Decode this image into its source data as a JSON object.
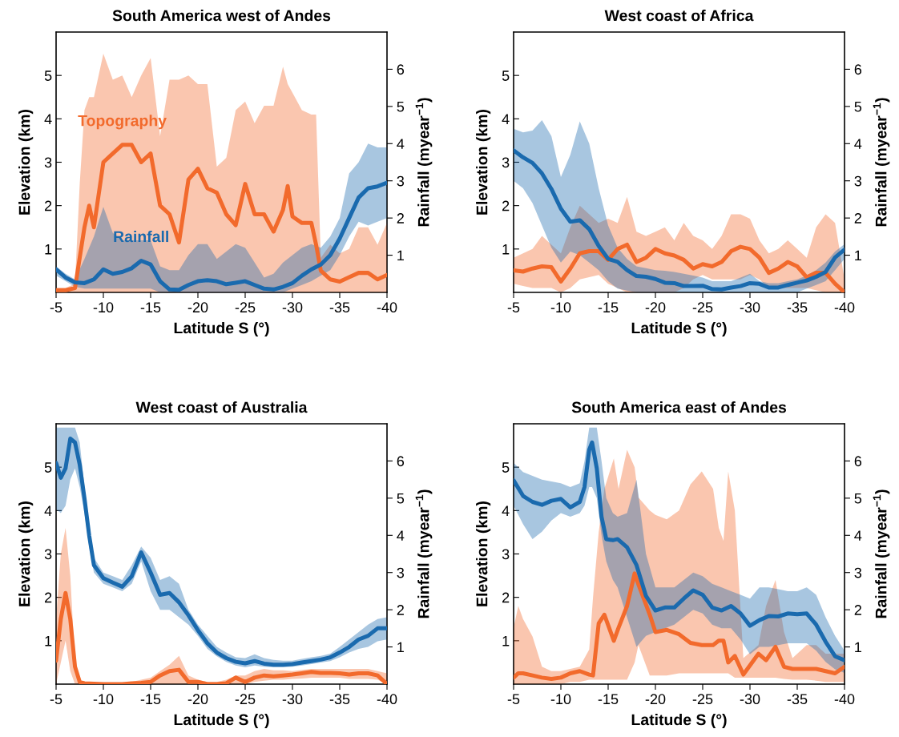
{
  "chart_data": [
    {
      "type": "line",
      "title": "South America west of Andes",
      "xlabel": "Latitude S (°)",
      "ylabel": "Elevation (km)",
      "y2label": "Rainfall (myear$^{−1}$)",
      "xlim": [
        -5,
        -40
      ],
      "xticks": [
        -5,
        -10,
        -15,
        -20,
        -25,
        -30,
        -35,
        -40
      ],
      "ylim": [
        0,
        6
      ],
      "yticks": [
        1,
        2,
        3,
        4,
        5
      ],
      "y2lim": [
        0,
        7
      ],
      "y2ticks": [
        1,
        2,
        3,
        4,
        5,
        6
      ],
      "series": [
        {
          "name": "Topography",
          "color": "#f26a2c",
          "axis": "y",
          "x": [
            -5,
            -6,
            -7,
            -7.5,
            -8,
            -8.5,
            -9,
            -10,
            -11,
            -12,
            -13,
            -14,
            -15,
            -16,
            -17,
            -18,
            -19,
            -20,
            -21,
            -22,
            -23,
            -24,
            -25,
            -26,
            -27,
            -28,
            -29,
            -29.5,
            -30,
            -31,
            -32,
            -32.5,
            -33,
            -34,
            -35,
            -36,
            -37,
            -38,
            -39,
            -40
          ],
          "values": [
            0.05,
            0.05,
            0.1,
            0.8,
            1.5,
            2.0,
            1.5,
            3.0,
            3.2,
            3.4,
            3.4,
            3.0,
            3.2,
            2.0,
            1.8,
            1.15,
            2.6,
            2.85,
            2.4,
            2.3,
            1.8,
            1.55,
            2.5,
            1.8,
            1.8,
            1.4,
            1.9,
            2.45,
            1.75,
            1.6,
            1.6,
            1.1,
            0.5,
            0.3,
            0.25,
            0.35,
            0.45,
            0.45,
            0.3,
            0.4
          ],
          "upper": [
            0.1,
            0.1,
            0.2,
            2.5,
            4.2,
            4.5,
            4.5,
            5.5,
            4.9,
            5.0,
            4.5,
            5.0,
            5.4,
            3.6,
            4.9,
            4.9,
            5.0,
            4.8,
            4.8,
            2.9,
            3.1,
            4.2,
            4.4,
            3.9,
            4.3,
            4.3,
            5.2,
            4.8,
            4.6,
            4.2,
            4.1,
            4.1,
            0.8,
            1.1,
            0.9,
            1.0,
            1.5,
            1.5,
            1.1,
            1.6
          ],
          "lower": [
            0,
            0,
            0,
            0,
            0,
            0,
            0,
            0,
            0,
            0,
            0,
            0,
            0,
            0,
            0,
            0,
            0,
            0,
            0,
            0,
            0,
            0,
            0,
            0,
            0,
            0,
            0,
            0,
            0,
            0,
            0,
            0,
            0,
            0,
            0,
            0,
            0,
            0,
            0,
            0
          ]
        },
        {
          "name": "Rainfall",
          "color": "#1a6aae",
          "axis": "y2",
          "x": [
            -5,
            -6,
            -7,
            -8,
            -9,
            -10,
            -11,
            -12,
            -13,
            -14,
            -15,
            -16,
            -17,
            -18,
            -19,
            -20,
            -21,
            -22,
            -23,
            -24,
            -25,
            -26,
            -27,
            -28,
            -29,
            -30,
            -31,
            -32,
            -33,
            -34,
            -35,
            -36,
            -37,
            -38,
            -39,
            -40
          ],
          "values": [
            0.62,
            0.4,
            0.27,
            0.25,
            0.35,
            0.62,
            0.5,
            0.55,
            0.65,
            0.85,
            0.75,
            0.3,
            0.08,
            0.07,
            0.2,
            0.3,
            0.33,
            0.3,
            0.22,
            0.26,
            0.3,
            0.2,
            0.1,
            0.08,
            0.15,
            0.25,
            0.45,
            0.62,
            0.75,
            1.0,
            1.45,
            2.0,
            2.55,
            2.8,
            2.85,
            2.95
          ],
          "upper": [
            0.7,
            0.5,
            0.35,
            0.9,
            1.5,
            2.3,
            1.6,
            1.4,
            1.4,
            1.4,
            1.4,
            0.7,
            0.6,
            0.6,
            1.0,
            1.3,
            1.3,
            0.9,
            1.1,
            1.3,
            1.2,
            0.8,
            0.4,
            0.5,
            0.8,
            1.0,
            1.2,
            1.3,
            1.2,
            1.5,
            2.0,
            3.2,
            3.5,
            4.0,
            3.9,
            3.9
          ],
          "lower": [
            0.45,
            0.3,
            0.15,
            0.1,
            0.1,
            0.1,
            0.1,
            0.1,
            0.1,
            0.1,
            0.1,
            0,
            0,
            0,
            0,
            0,
            0,
            0,
            0,
            0,
            0,
            0,
            0,
            0,
            0,
            0.1,
            0.2,
            0.3,
            0.45,
            0.6,
            1.0,
            1.5,
            1.9,
            1.8,
            1.9,
            2.0
          ]
        }
      ]
    },
    {
      "type": "line",
      "title": "West coast of Africa",
      "xlabel": "Latitude S (°)",
      "ylabel": "Elevation (km)",
      "y2label": "Rainfall (myear$^{−1}$)",
      "xlim": [
        -5,
        -40
      ],
      "xticks": [
        -5,
        -10,
        -15,
        -20,
        -25,
        -30,
        -35,
        -40
      ],
      "ylim": [
        0,
        6
      ],
      "yticks": [
        1,
        2,
        3,
        4,
        5
      ],
      "y2lim": [
        0,
        7
      ],
      "y2ticks": [
        1,
        2,
        3,
        4,
        5,
        6
      ],
      "series": [
        {
          "color": "#f26a2c",
          "axis": "y",
          "x": [
            -5,
            -6,
            -7,
            -8,
            -9,
            -10,
            -11,
            -12,
            -13,
            -14,
            -15,
            -16,
            -17,
            -18,
            -19,
            -20,
            -21,
            -22,
            -23,
            -24,
            -25,
            -26,
            -27,
            -28,
            -29,
            -30,
            -31,
            -32,
            -33,
            -34,
            -35,
            -36,
            -37,
            -38,
            -39,
            -40
          ],
          "values": [
            0.51,
            0.48,
            0.55,
            0.6,
            0.58,
            0.25,
            0.55,
            0.9,
            0.95,
            0.95,
            0.75,
            1.0,
            1.1,
            0.7,
            0.8,
            1.0,
            0.9,
            0.85,
            0.75,
            0.55,
            0.65,
            0.6,
            0.7,
            0.95,
            1.05,
            1.0,
            0.8,
            0.45,
            0.55,
            0.7,
            0.6,
            0.35,
            0.45,
            0.45,
            0.2,
            0.0
          ],
          "upper": [
            0.8,
            0.9,
            1.0,
            1.3,
            1.1,
            0.9,
            1.5,
            2.0,
            1.8,
            1.6,
            1.7,
            1.6,
            2.2,
            1.4,
            1.3,
            1.4,
            1.5,
            1.2,
            1.6,
            1.3,
            1.2,
            1.0,
            1.3,
            1.8,
            1.8,
            1.7,
            1.2,
            0.9,
            1.0,
            1.2,
            1.0,
            0.8,
            1.5,
            1.8,
            1.6,
            0.3
          ],
          "lower": [
            0.2,
            0.15,
            0.1,
            0.1,
            0.1,
            0.0,
            0.1,
            0.3,
            0.35,
            0.4,
            0.2,
            0.1,
            0,
            0,
            0,
            0,
            0,
            0,
            0.1,
            0.3,
            0.4,
            0.3,
            0.3,
            0.3,
            0.3,
            0.4,
            0.3,
            0.1,
            0.1,
            0.1,
            0.1,
            0.1,
            0.05,
            0,
            0,
            0
          ]
        },
        {
          "color": "#1a6aae",
          "axis": "y2",
          "x": [
            -5,
            -6,
            -7,
            -8,
            -9,
            -10,
            -11,
            -12,
            -13,
            -14,
            -15,
            -16,
            -17,
            -18,
            -19,
            -20,
            -21,
            -22,
            -23,
            -24,
            -25,
            -26,
            -27,
            -28,
            -29,
            -30,
            -31,
            -32,
            -33,
            -34,
            -35,
            -36,
            -37,
            -38,
            -39,
            -40
          ],
          "values": [
            3.82,
            3.63,
            3.48,
            3.2,
            2.78,
            2.25,
            1.9,
            1.94,
            1.7,
            1.25,
            0.9,
            0.82,
            0.6,
            0.44,
            0.42,
            0.36,
            0.26,
            0.25,
            0.17,
            0.17,
            0.18,
            0.09,
            0.08,
            0.13,
            0.17,
            0.25,
            0.23,
            0.13,
            0.13,
            0.2,
            0.26,
            0.32,
            0.42,
            0.55,
            0.94,
            1.15
          ],
          "upper": [
            4.4,
            4.3,
            4.35,
            4.63,
            4.2,
            3.1,
            3.7,
            4.6,
            4.0,
            2.8,
            1.8,
            1.2,
            0.9,
            0.7,
            0.65,
            0.6,
            0.58,
            0.55,
            0.5,
            0.45,
            0.4,
            0.3,
            0.3,
            0.3,
            0.4,
            0.5,
            0.3,
            0.25,
            0.25,
            0.3,
            0.35,
            0.45,
            0.6,
            0.8,
            1.1,
            1.3
          ],
          "lower": [
            3.0,
            2.8,
            2.4,
            1.8,
            1.2,
            0.8,
            1.1,
            1.0,
            0.8,
            0.6,
            0.3,
            0.1,
            0.05,
            0,
            0,
            0,
            0,
            0,
            0,
            0,
            0,
            0,
            0,
            0,
            0,
            0,
            0,
            0,
            0,
            0,
            0,
            0.1,
            0.2,
            0.3,
            0.6,
            0.9
          ]
        }
      ]
    },
    {
      "type": "line",
      "title": "West coast of Australia",
      "xlabel": "Latitude S (°)",
      "ylabel": "Elevation (km)",
      "y2label": "Rainfall (myear$^{−1}$)",
      "xlim": [
        -5,
        -40
      ],
      "xticks": [
        -5,
        -10,
        -15,
        -20,
        -25,
        -30,
        -35,
        -40
      ],
      "ylim": [
        0,
        6
      ],
      "yticks": [
        1,
        2,
        3,
        4,
        5
      ],
      "y2lim": [
        0,
        7
      ],
      "y2ticks": [
        1,
        2,
        3,
        4,
        5,
        6
      ],
      "series": [
        {
          "color": "#f26a2c",
          "axis": "y",
          "x": [
            -5,
            -5.5,
            -6,
            -6.5,
            -7,
            -7.5,
            -8,
            -9,
            -10,
            -11,
            -12,
            -13,
            -14,
            -15,
            -16,
            -17,
            -18,
            -19,
            -20,
            -21,
            -22,
            -23,
            -24,
            -25,
            -26,
            -27,
            -28,
            -29,
            -30,
            -31,
            -32,
            -33,
            -34,
            -35,
            -36,
            -37,
            -38,
            -39,
            -40
          ],
          "values": [
            0.54,
            1.5,
            2.1,
            1.5,
            0.4,
            0.05,
            0.02,
            0.01,
            0,
            0,
            0,
            0.02,
            0.03,
            0.05,
            0.2,
            0.3,
            0.33,
            0.05,
            0.05,
            0,
            0,
            0.02,
            0.15,
            0.05,
            0.15,
            0.2,
            0.18,
            0.2,
            0.22,
            0.25,
            0.28,
            0.26,
            0.26,
            0.25,
            0.22,
            0.25,
            0.25,
            0.2,
            0.0
          ],
          "upper": [
            1.5,
            3.0,
            3.6,
            2.5,
            0.5,
            0.1,
            0.05,
            0.03,
            0.02,
            0.02,
            0.02,
            0.05,
            0.1,
            0.15,
            0.3,
            0.45,
            0.65,
            0.2,
            0.1,
            0.05,
            0.05,
            0.1,
            0.2,
            0.2,
            0.3,
            0.35,
            0.32,
            0.32,
            0.3,
            0.33,
            0.35,
            0.35,
            0.35,
            0.35,
            0.35,
            0.35,
            0.35,
            0.3,
            0.25
          ],
          "lower": [
            0,
            0.5,
            1.0,
            0.3,
            0,
            0,
            0,
            0,
            0,
            0,
            0,
            0,
            0,
            0,
            0,
            0,
            0,
            0,
            0,
            0,
            0,
            0,
            0,
            0,
            0.05,
            0.08,
            0.1,
            0.1,
            0.12,
            0.13,
            0.15,
            0.15,
            0.15,
            0.15,
            0.12,
            0.12,
            0.12,
            0.1,
            0
          ]
        },
        {
          "color": "#1a6aae",
          "axis": "y2",
          "x": [
            -5,
            -5.5,
            -6,
            -6.5,
            -7,
            -7.5,
            -8,
            -8.5,
            -9,
            -10,
            -11,
            -12,
            -13,
            -14,
            -15,
            -16,
            -17,
            -18,
            -19,
            -20,
            -21,
            -22,
            -23,
            -24,
            -25,
            -26,
            -27,
            -28,
            -29,
            -30,
            -31,
            -32,
            -33,
            -34,
            -35,
            -36,
            -37,
            -38,
            -39,
            -40
          ],
          "values": [
            5.95,
            5.55,
            5.8,
            6.6,
            6.5,
            5.9,
            5.0,
            4.0,
            3.2,
            2.85,
            2.73,
            2.62,
            2.9,
            3.54,
            3.0,
            2.4,
            2.45,
            2.2,
            1.85,
            1.45,
            1.1,
            0.85,
            0.7,
            0.6,
            0.56,
            0.62,
            0.55,
            0.52,
            0.52,
            0.54,
            0.58,
            0.62,
            0.66,
            0.72,
            0.85,
            1.0,
            1.2,
            1.3,
            1.5,
            1.5
          ],
          "upper": [
            6.9,
            6.9,
            6.9,
            6.9,
            6.9,
            6.5,
            5.3,
            4.2,
            3.4,
            3.0,
            2.9,
            2.8,
            3.2,
            3.7,
            3.4,
            2.8,
            2.9,
            2.7,
            2.0,
            1.6,
            1.3,
            1.0,
            0.85,
            0.72,
            0.7,
            0.8,
            0.7,
            0.65,
            0.63,
            0.63,
            0.68,
            0.72,
            0.76,
            0.82,
            1.0,
            1.2,
            1.4,
            1.6,
            1.75,
            1.8
          ],
          "lower": [
            4.7,
            4.6,
            4.8,
            5.5,
            5.8,
            5.3,
            4.6,
            3.7,
            3.0,
            2.7,
            2.6,
            2.5,
            2.7,
            3.3,
            2.5,
            2.0,
            2.0,
            1.8,
            1.6,
            1.3,
            0.95,
            0.75,
            0.6,
            0.5,
            0.45,
            0.5,
            0.47,
            0.45,
            0.45,
            0.47,
            0.5,
            0.54,
            0.58,
            0.62,
            0.72,
            0.85,
            0.95,
            1.0,
            1.15,
            1.2
          ]
        }
      ]
    },
    {
      "type": "line",
      "title": "South America east of Andes",
      "xlabel": "Latitude S (°)",
      "ylabel": "Elevation (km)",
      "y2label": "Rainfall (myear$^{−1}$)",
      "xlim": [
        -5,
        -40
      ],
      "xticks": [
        -5,
        -10,
        -15,
        -20,
        -25,
        -30,
        -35,
        -40
      ],
      "ylim": [
        0,
        6
      ],
      "yticks": [
        1,
        2,
        3,
        4,
        5
      ],
      "y2lim": [
        0,
        7
      ],
      "y2ticks": [
        1,
        2,
        3,
        4,
        5,
        6
      ],
      "series": [
        {
          "color": "#f26a2c",
          "axis": "y",
          "x": [
            -5,
            -5.5,
            -6,
            -7,
            -8,
            -9,
            -10,
            -11,
            -12,
            -13,
            -13.4,
            -14,
            -14.6,
            -15.6,
            -16.1,
            -17,
            -17.8,
            -18.2,
            -19.4,
            -20,
            -21.2,
            -22.5,
            -23.7,
            -24.9,
            -26.1,
            -26.7,
            -27.2,
            -27.7,
            -28.4,
            -29.3,
            -30.9,
            -31.7,
            -32.7,
            -33.6,
            -34.5,
            -36,
            -37,
            -38,
            -39,
            -40
          ],
          "values": [
            0.15,
            0.25,
            0.25,
            0.2,
            0.15,
            0.12,
            0.15,
            0.25,
            0.3,
            0.22,
            0.2,
            1.4,
            1.6,
            1.0,
            1.3,
            1.8,
            2.55,
            2.3,
            1.6,
            1.2,
            1.25,
            1.15,
            0.95,
            0.9,
            0.9,
            1.0,
            1.0,
            0.5,
            0.65,
            0.22,
            0.7,
            0.55,
            0.86,
            0.4,
            0.35,
            0.35,
            0.35,
            0.3,
            0.25,
            0.4
          ],
          "upper": [
            1.3,
            1.8,
            1.5,
            1.1,
            0.4,
            0.3,
            0.3,
            0.35,
            0.4,
            0.8,
            2.0,
            3.5,
            4.5,
            5.2,
            4.5,
            5.4,
            5.0,
            4.3,
            4.0,
            3.9,
            3.8,
            4.0,
            4.6,
            4.9,
            4.5,
            3.6,
            3.3,
            4.9,
            4.0,
            0.6,
            0.9,
            1.8,
            2.4,
            1.2,
            0.6,
            0.9,
            0.9,
            0.7,
            0.7,
            0.7
          ],
          "lower": [
            0,
            0,
            0,
            0,
            0,
            0,
            0,
            0.05,
            0.05,
            0.1,
            0.1,
            0.1,
            0.1,
            0.1,
            0.1,
            0.1,
            0.5,
            0.9,
            0.2,
            0.2,
            0.2,
            0.25,
            0.25,
            0.25,
            0.25,
            0.25,
            0.25,
            0.25,
            0.15,
            0.15,
            0.15,
            0.15,
            0.15,
            0.12,
            0.1,
            0.1,
            0.08,
            0.05,
            0.05,
            0.05
          ]
        },
        {
          "color": "#1a6aae",
          "axis": "y2",
          "x": [
            -5,
            -6,
            -7,
            -8,
            -9,
            -10,
            -11,
            -12,
            -12.5,
            -13,
            -13.3,
            -13.8,
            -14.3,
            -14.8,
            -15.5,
            -16,
            -17,
            -18,
            -19,
            -20,
            -21,
            -22,
            -23,
            -24,
            -25,
            -26,
            -27,
            -28,
            -29,
            -30,
            -31,
            -32,
            -33,
            -34,
            -35,
            -36,
            -37,
            -38,
            -39,
            -40
          ],
          "values": [
            5.48,
            5.06,
            4.9,
            4.82,
            4.93,
            4.98,
            4.75,
            4.9,
            5.3,
            6.3,
            6.5,
            5.8,
            4.5,
            3.9,
            3.87,
            3.9,
            3.68,
            3.2,
            2.37,
            1.98,
            2.06,
            2.06,
            2.3,
            2.52,
            2.4,
            2.06,
            1.98,
            2.1,
            1.9,
            1.57,
            1.72,
            1.83,
            1.82,
            1.9,
            1.88,
            1.9,
            1.6,
            1.14,
            0.75,
            0.64
          ],
          "upper": [
            5.95,
            5.7,
            5.6,
            5.5,
            5.45,
            5.4,
            5.3,
            5.4,
            6.0,
            6.9,
            6.9,
            6.9,
            6.0,
            5.0,
            4.6,
            4.5,
            4.6,
            5.5,
            3.5,
            2.6,
            2.6,
            2.6,
            2.8,
            3.0,
            2.9,
            2.7,
            2.6,
            2.5,
            2.4,
            2.3,
            2.6,
            2.6,
            2.55,
            2.5,
            2.5,
            2.6,
            2.4,
            1.8,
            1.3,
            0.9
          ],
          "lower": [
            4.8,
            4.3,
            3.9,
            4.1,
            4.4,
            4.6,
            4.5,
            4.6,
            4.8,
            5.3,
            5.3,
            5.0,
            4.0,
            3.3,
            2.8,
            2.6,
            1.8,
            1.0,
            1.3,
            1.4,
            1.5,
            1.6,
            1.8,
            2.0,
            1.9,
            1.6,
            1.5,
            1.5,
            1.2,
            0.8,
            1.0,
            1.0,
            1.05,
            1.1,
            1.1,
            1.1,
            0.9,
            0.6,
            0.4,
            0.3
          ]
        }
      ]
    }
  ]
}
